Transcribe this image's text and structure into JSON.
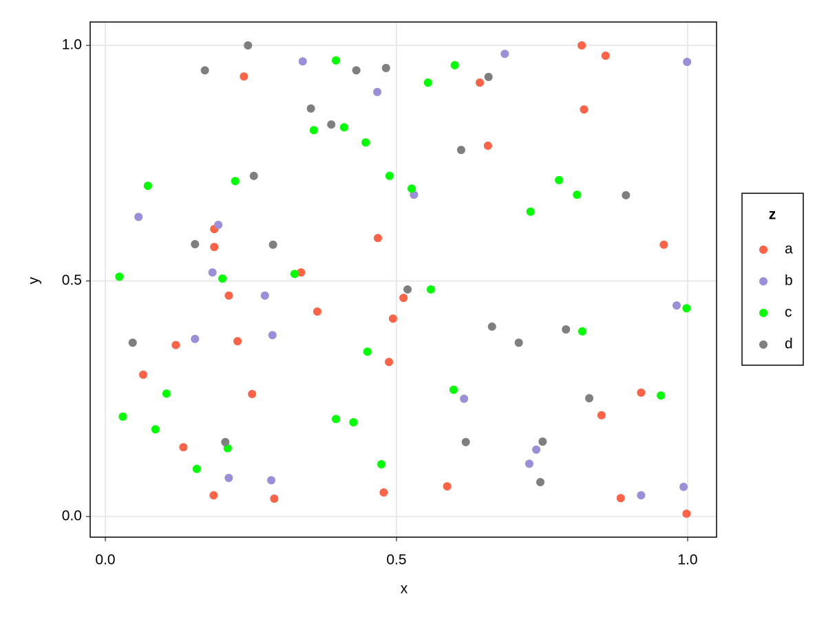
{
  "chart_data": {
    "type": "scatter",
    "x_label": "x",
    "y_label": "y",
    "xlim": [
      -0.026,
      1.0496
    ],
    "ylim": [
      -0.0438,
      1.0496
    ],
    "xticks": [
      {
        "value": 0,
        "label": "0.0"
      },
      0.5,
      {
        "value": 1,
        "label": "1.0"
      }
    ],
    "yticks": [
      {
        "value": 0,
        "label": "0.0"
      },
      0.5,
      {
        "value": 1,
        "label": "1.0"
      }
    ],
    "grid": true,
    "legend_title": "z",
    "legend_position": "right",
    "series": [
      {
        "name": "a",
        "color": "#ff6347",
        "x": [
          0.238,
          0.818,
          0.859,
          0.822,
          0.643,
          0.657,
          0.187,
          0.187,
          0.468,
          0.336,
          0.959,
          0.212,
          0.512,
          0.364,
          0.494,
          0.121,
          0.227,
          0.487,
          0.065,
          0.252,
          0.92,
          0.852,
          0.134,
          0.186,
          0.29,
          0.478,
          0.587,
          0.885,
          0.998
        ],
        "y": [
          0.934,
          1.0,
          0.978,
          0.864,
          0.921,
          0.787,
          0.61,
          0.572,
          0.591,
          0.518,
          0.577,
          0.469,
          0.464,
          0.435,
          0.42,
          0.364,
          0.372,
          0.328,
          0.301,
          0.26,
          0.263,
          0.215,
          0.147,
          0.045,
          0.038,
          0.051,
          0.064,
          0.039,
          0.006
        ]
      },
      {
        "name": "b",
        "color": "#9a8fd8",
        "x": [
          0.339,
          0.686,
          0.999,
          0.467,
          0.53,
          0.057,
          0.194,
          0.184,
          0.274,
          0.981,
          0.154,
          0.287,
          0.616,
          0.74,
          0.728,
          0.212,
          0.285,
          0.92,
          0.993
        ],
        "y": [
          0.966,
          0.982,
          0.965,
          0.901,
          0.683,
          0.636,
          0.619,
          0.518,
          0.469,
          0.448,
          0.377,
          0.385,
          0.25,
          0.142,
          0.112,
          0.082,
          0.077,
          0.045,
          0.063
        ]
      },
      {
        "name": "c",
        "color": "#00ff00",
        "x": [
          0.396,
          0.6,
          0.554,
          0.358,
          0.41,
          0.447,
          0.488,
          0.526,
          0.223,
          0.073,
          0.779,
          0.73,
          0.81,
          0.024,
          0.201,
          0.325,
          0.559,
          0.998,
          0.819,
          0.45,
          0.105,
          0.598,
          0.954,
          0.03,
          0.396,
          0.426,
          0.086,
          0.21,
          0.157,
          0.474
        ],
        "y": [
          0.968,
          0.958,
          0.921,
          0.82,
          0.826,
          0.794,
          0.723,
          0.696,
          0.712,
          0.702,
          0.714,
          0.647,
          0.683,
          0.509,
          0.505,
          0.515,
          0.482,
          0.442,
          0.393,
          0.35,
          0.261,
          0.269,
          0.257,
          0.212,
          0.207,
          0.2,
          0.185,
          0.145,
          0.101,
          0.111
        ]
      },
      {
        "name": "d",
        "color": "#7f7f7f",
        "x": [
          0.245,
          0.171,
          0.431,
          0.482,
          0.658,
          0.353,
          0.388,
          0.611,
          0.255,
          0.894,
          0.154,
          0.288,
          0.519,
          0.047,
          0.664,
          0.71,
          0.791,
          0.831,
          0.206,
          0.619,
          0.751,
          0.747
        ],
        "y": [
          1.0,
          0.947,
          0.947,
          0.952,
          0.933,
          0.866,
          0.832,
          0.778,
          0.723,
          0.682,
          0.578,
          0.577,
          0.482,
          0.369,
          0.403,
          0.369,
          0.397,
          0.251,
          0.158,
          0.158,
          0.159,
          0.073
        ]
      }
    ]
  }
}
